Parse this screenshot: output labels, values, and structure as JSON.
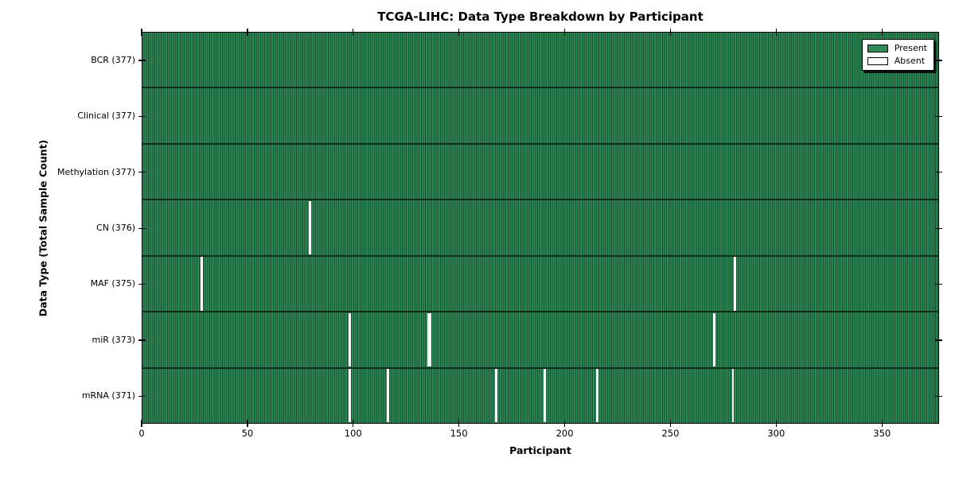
{
  "chart_data": {
    "type": "heatmap",
    "title": "TCGA-LIHC: Data Type Breakdown by Participant",
    "xlabel": "Participant",
    "ylabel": "Data Type (Total Sample Count)",
    "xlim": [
      0,
      377
    ],
    "x_ticks": [
      0,
      50,
      100,
      150,
      200,
      250,
      300,
      350
    ],
    "participants_total": 377,
    "grid": false,
    "legend_position": "upper right",
    "rows": [
      {
        "label": "BCR (377)",
        "name": "BCR",
        "total": 377,
        "absent_participants": []
      },
      {
        "label": "Clinical (377)",
        "name": "Clinical",
        "total": 377,
        "absent_participants": []
      },
      {
        "label": "Methylation (377)",
        "name": "Methylation",
        "total": 377,
        "absent_participants": []
      },
      {
        "label": "CN (376)",
        "name": "CN",
        "total": 376,
        "absent_participants": [
          79
        ]
      },
      {
        "label": "MAF (375)",
        "name": "MAF",
        "total": 375,
        "absent_participants": [
          28,
          280
        ]
      },
      {
        "label": "miR (373)",
        "name": "miR",
        "total": 373,
        "absent_participants": [
          98,
          135,
          136,
          270
        ]
      },
      {
        "label": "mRNA (371)",
        "name": "mRNA",
        "total": 371,
        "absent_participants": [
          98,
          116,
          167,
          190,
          215,
          279
        ]
      }
    ],
    "legend": [
      {
        "label": "Present",
        "color": "#2e8b57"
      },
      {
        "label": "Absent",
        "color": "#ffffff"
      }
    ],
    "colors": {
      "present": "#2e8b57",
      "present_edge": "#1a4f30",
      "absent": "#ffffff",
      "axis": "#000000",
      "background": "#ffffff"
    }
  }
}
